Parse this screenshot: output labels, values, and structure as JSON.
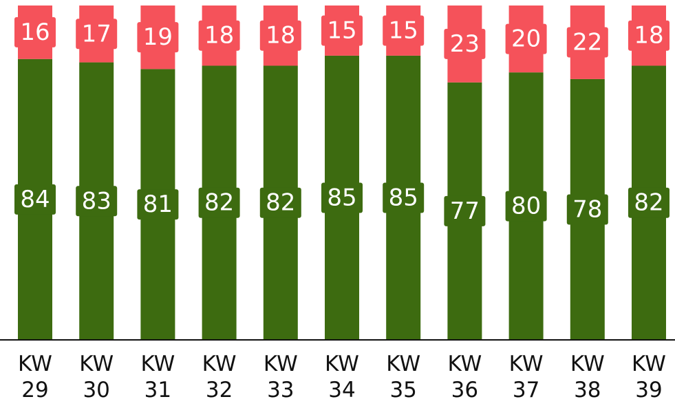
{
  "chart_data": {
    "type": "stacked_bar",
    "categories": [
      "KW 29",
      "KW 30",
      "KW 31",
      "KW 32",
      "KW 33",
      "KW 34",
      "KW 35",
      "KW 36",
      "KW 37",
      "KW 38",
      "KW 39"
    ],
    "series": [
      {
        "color": "#3d6b10",
        "values": [
          84,
          83,
          81,
          82,
          82,
          85,
          85,
          77,
          80,
          78,
          82
        ]
      },
      {
        "color": "#f5525a",
        "values": [
          16,
          17,
          19,
          18,
          18,
          15,
          15,
          23,
          20,
          22,
          18
        ]
      }
    ]
  }
}
